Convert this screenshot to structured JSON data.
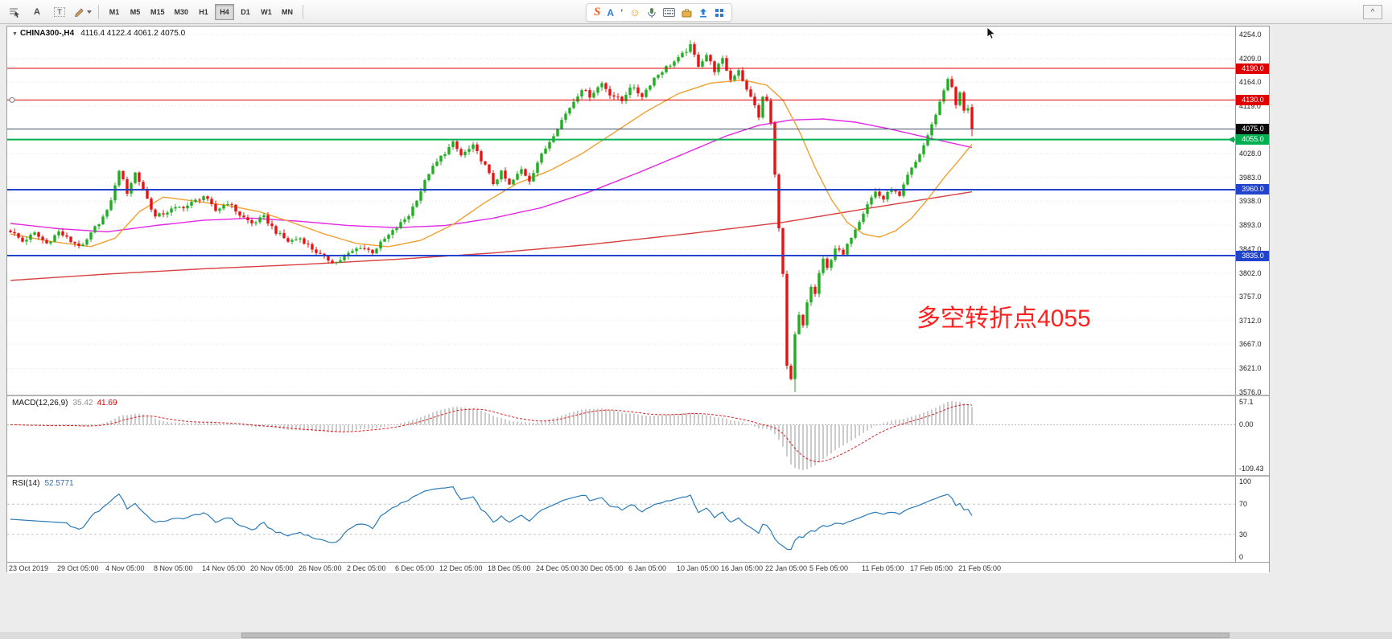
{
  "toolbar": {
    "annotation_tool_label": "A",
    "text_tool_label": "T",
    "timeframes": [
      "M1",
      "M5",
      "M15",
      "M30",
      "H1",
      "H4",
      "D1",
      "W1",
      "MN"
    ],
    "active_timeframe": "H4",
    "collapse_label": "^"
  },
  "ime": {
    "sogou_label": "S",
    "mode_label": "A",
    "punct_label": "’",
    "emoji_label": "☺"
  },
  "chart_title": {
    "expander": "▼",
    "symbol": "CHINA300-,H4",
    "ohlc": "4116.4 4122.4 4061.2 4075.0"
  },
  "annotation": {
    "text": "多空转折点4055",
    "color": "#ff2020"
  },
  "chart_data": {
    "type": "candlestick",
    "symbol": "CHINA300-,H4",
    "timeframe": "H4",
    "num_candles": 240,
    "y_range": [
      3576.0,
      4254.0
    ],
    "y_axis_ticks": [
      "4254.0",
      "4209.0",
      "4164.0",
      "4119.0",
      "4028.0",
      "3983.0",
      "3938.0",
      "3893.0",
      "3847.0",
      "3802.0",
      "3757.0",
      "3712.0",
      "3667.0",
      "3621.0",
      "3576.0"
    ],
    "price_anchors": [
      [
        0,
        3882
      ],
      [
        3,
        3862
      ],
      [
        6,
        3877
      ],
      [
        9,
        3858
      ],
      [
        12,
        3880
      ],
      [
        15,
        3862
      ],
      [
        18,
        3852
      ],
      [
        21,
        3888
      ],
      [
        24,
        3918
      ],
      [
        26,
        3966
      ],
      [
        27,
        3998
      ],
      [
        29,
        3955
      ],
      [
        31,
        3992
      ],
      [
        33,
        3960
      ],
      [
        36,
        3908
      ],
      [
        40,
        3922
      ],
      [
        44,
        3930
      ],
      [
        48,
        3948
      ],
      [
        51,
        3920
      ],
      [
        54,
        3936
      ],
      [
        57,
        3912
      ],
      [
        60,
        3896
      ],
      [
        63,
        3908
      ],
      [
        66,
        3880
      ],
      [
        69,
        3862
      ],
      [
        72,
        3868
      ],
      [
        75,
        3848
      ],
      [
        78,
        3830
      ],
      [
        81,
        3822
      ],
      [
        84,
        3838
      ],
      [
        87,
        3852
      ],
      [
        90,
        3842
      ],
      [
        93,
        3866
      ],
      [
        96,
        3888
      ],
      [
        99,
        3912
      ],
      [
        102,
        3958
      ],
      [
        104,
        3992
      ],
      [
        107,
        4022
      ],
      [
        110,
        4048
      ],
      [
        112,
        4025
      ],
      [
        115,
        4042
      ],
      [
        118,
        4005
      ],
      [
        120,
        3972
      ],
      [
        122,
        3992
      ],
      [
        124,
        3968
      ],
      [
        127,
        3998
      ],
      [
        129,
        3978
      ],
      [
        131,
        4012
      ],
      [
        134,
        4052
      ],
      [
        137,
        4092
      ],
      [
        140,
        4128
      ],
      [
        142,
        4152
      ],
      [
        144,
        4138
      ],
      [
        147,
        4162
      ],
      [
        149,
        4142
      ],
      [
        152,
        4128
      ],
      [
        154,
        4156
      ],
      [
        157,
        4138
      ],
      [
        160,
        4172
      ],
      [
        163,
        4192
      ],
      [
        166,
        4208
      ],
      [
        169,
        4232
      ],
      [
        171,
        4196
      ],
      [
        173,
        4216
      ],
      [
        175,
        4186
      ],
      [
        177,
        4206
      ],
      [
        179,
        4168
      ],
      [
        181,
        4188
      ],
      [
        183,
        4148
      ],
      [
        185,
        4122
      ],
      [
        186,
        4096
      ],
      [
        187,
        4136
      ],
      [
        188,
        4128
      ],
      [
        189,
        4086
      ],
      [
        190,
        3990
      ],
      [
        191,
        3886
      ],
      [
        192,
        3800
      ],
      [
        193,
        3625
      ],
      [
        194,
        3600
      ],
      [
        195,
        3685
      ],
      [
        196,
        3722
      ],
      [
        197,
        3702
      ],
      [
        198,
        3746
      ],
      [
        199,
        3776
      ],
      [
        200,
        3762
      ],
      [
        201,
        3802
      ],
      [
        202,
        3826
      ],
      [
        203,
        3810
      ],
      [
        205,
        3850
      ],
      [
        207,
        3836
      ],
      [
        209,
        3872
      ],
      [
        211,
        3902
      ],
      [
        213,
        3934
      ],
      [
        215,
        3956
      ],
      [
        217,
        3942
      ],
      [
        219,
        3962
      ],
      [
        221,
        3946
      ],
      [
        223,
        3986
      ],
      [
        225,
        4012
      ],
      [
        227,
        4044
      ],
      [
        229,
        4082
      ],
      [
        231,
        4126
      ],
      [
        233,
        4172
      ],
      [
        234,
        4152
      ],
      [
        235,
        4120
      ],
      [
        236,
        4142
      ],
      [
        237,
        4112
      ],
      [
        238,
        4116
      ],
      [
        239,
        4075
      ]
    ],
    "forced": {
      "high_index": 169,
      "high": 4243.0,
      "low_index": 195,
      "low": 3576.0
    },
    "last_candle": {
      "o": 4116.4,
      "h": 4122.4,
      "l": 4061.2,
      "c": 4075.0
    },
    "hlines": [
      {
        "price": 4190.0,
        "label": "4190.0",
        "color": "#e00000",
        "width": 1
      },
      {
        "price": 4130.0,
        "label": "4130.0",
        "color": "#e00000",
        "width": 1
      },
      {
        "price": 4055.0,
        "label": "4055.0",
        "color": "#00b050",
        "width": 2
      },
      {
        "price": 3960.0,
        "label": "3960.0",
        "color": "#2244cc",
        "width": 2
      },
      {
        "price": 3835.0,
        "label": "3835.0",
        "color": "#2244cc",
        "width": 2
      }
    ],
    "current_price": {
      "price": 4075.0,
      "label": "4075.0",
      "tag_color": "#0a0a0a",
      "line_color": "#44506a"
    },
    "ma_lines": [
      {
        "name": "ma-slow-red",
        "color": "#d84040",
        "anchors": [
          [
            0,
            3788
          ],
          [
            24,
            3800
          ],
          [
            48,
            3810
          ],
          [
            72,
            3818
          ],
          [
            96,
            3828
          ],
          [
            120,
            3840
          ],
          [
            144,
            3856
          ],
          [
            168,
            3876
          ],
          [
            192,
            3898
          ],
          [
            216,
            3928
          ],
          [
            239,
            3956
          ]
        ]
      },
      {
        "name": "ma-medium-magenta",
        "color": "#e428e4",
        "anchors": [
          [
            0,
            3896
          ],
          [
            12,
            3886
          ],
          [
            24,
            3880
          ],
          [
            36,
            3892
          ],
          [
            48,
            3902
          ],
          [
            60,
            3906
          ],
          [
            72,
            3900
          ],
          [
            84,
            3892
          ],
          [
            96,
            3888
          ],
          [
            108,
            3892
          ],
          [
            120,
            3906
          ],
          [
            132,
            3926
          ],
          [
            144,
            3956
          ],
          [
            156,
            3992
          ],
          [
            168,
            4030
          ],
          [
            178,
            4062
          ],
          [
            186,
            4082
          ],
          [
            194,
            4092
          ],
          [
            202,
            4094
          ],
          [
            210,
            4088
          ],
          [
            218,
            4076
          ],
          [
            226,
            4062
          ],
          [
            233,
            4050
          ],
          [
            239,
            4040
          ]
        ]
      },
      {
        "name": "ma-fast-orange",
        "color": "#f0a030",
        "anchors": [
          [
            0,
            3876
          ],
          [
            10,
            3862
          ],
          [
            20,
            3852
          ],
          [
            26,
            3868
          ],
          [
            32,
            3918
          ],
          [
            38,
            3946
          ],
          [
            46,
            3938
          ],
          [
            54,
            3930
          ],
          [
            62,
            3918
          ],
          [
            70,
            3898
          ],
          [
            78,
            3876
          ],
          [
            86,
            3858
          ],
          [
            94,
            3852
          ],
          [
            102,
            3864
          ],
          [
            110,
            3894
          ],
          [
            118,
            3936
          ],
          [
            126,
            3972
          ],
          [
            134,
            3996
          ],
          [
            142,
            4028
          ],
          [
            150,
            4068
          ],
          [
            158,
            4108
          ],
          [
            166,
            4142
          ],
          [
            174,
            4162
          ],
          [
            182,
            4168
          ],
          [
            188,
            4158
          ],
          [
            192,
            4130
          ],
          [
            196,
            4072
          ],
          [
            200,
            4002
          ],
          [
            204,
            3942
          ],
          [
            208,
            3898
          ],
          [
            212,
            3876
          ],
          [
            216,
            3870
          ],
          [
            220,
            3882
          ],
          [
            224,
            3906
          ],
          [
            228,
            3942
          ],
          [
            232,
            3982
          ],
          [
            236,
            4018
          ],
          [
            239,
            4046
          ]
        ]
      }
    ],
    "date_labels": [
      [
        0,
        "23 Oct 2019"
      ],
      [
        12,
        "29 Oct 05:00"
      ],
      [
        24,
        "4 Nov 05:00"
      ],
      [
        36,
        "8 Nov 05:00"
      ],
      [
        48,
        "14 Nov 05:00"
      ],
      [
        60,
        "20 Nov 05:00"
      ],
      [
        72,
        "26 Nov 05:00"
      ],
      [
        84,
        "2 Dec 05:00"
      ],
      [
        96,
        "6 Dec 05:00"
      ],
      [
        107,
        "12 Dec 05:00"
      ],
      [
        119,
        "18 Dec 05:00"
      ],
      [
        131,
        "24 Dec 05:00"
      ],
      [
        142,
        "30 Dec 05:00"
      ],
      [
        154,
        "6 Jan 05:00"
      ],
      [
        166,
        "10 Jan 05:00"
      ],
      [
        177,
        "16 Jan 05:00"
      ],
      [
        188,
        "22 Jan 05:00"
      ],
      [
        199,
        "5 Feb 05:00"
      ],
      [
        212,
        "11 Feb 05:00"
      ],
      [
        224,
        "17 Feb 05:00"
      ],
      [
        236,
        "21 Feb 05:00"
      ]
    ],
    "macd": {
      "title": "MACD(12,26,9)",
      "main_value": "35.42",
      "signal_value": "41.69",
      "max": 57.1,
      "min": -109.43,
      "labels": {
        "max": "57.1",
        "zero": "0.00",
        "min": "-109.43"
      },
      "hist_color": "#aaaaaa",
      "signal_color": "#d82020"
    },
    "rsi": {
      "title": "RSI(14)",
      "value": "52.5771",
      "levels": [
        70,
        30
      ],
      "labels": [
        "100",
        "70",
        "30",
        "0"
      ],
      "color": "#2a7ab8"
    },
    "colors": {
      "up": "#1fae1f",
      "down": "#e81212",
      "grid": "#e0e0e0"
    }
  }
}
